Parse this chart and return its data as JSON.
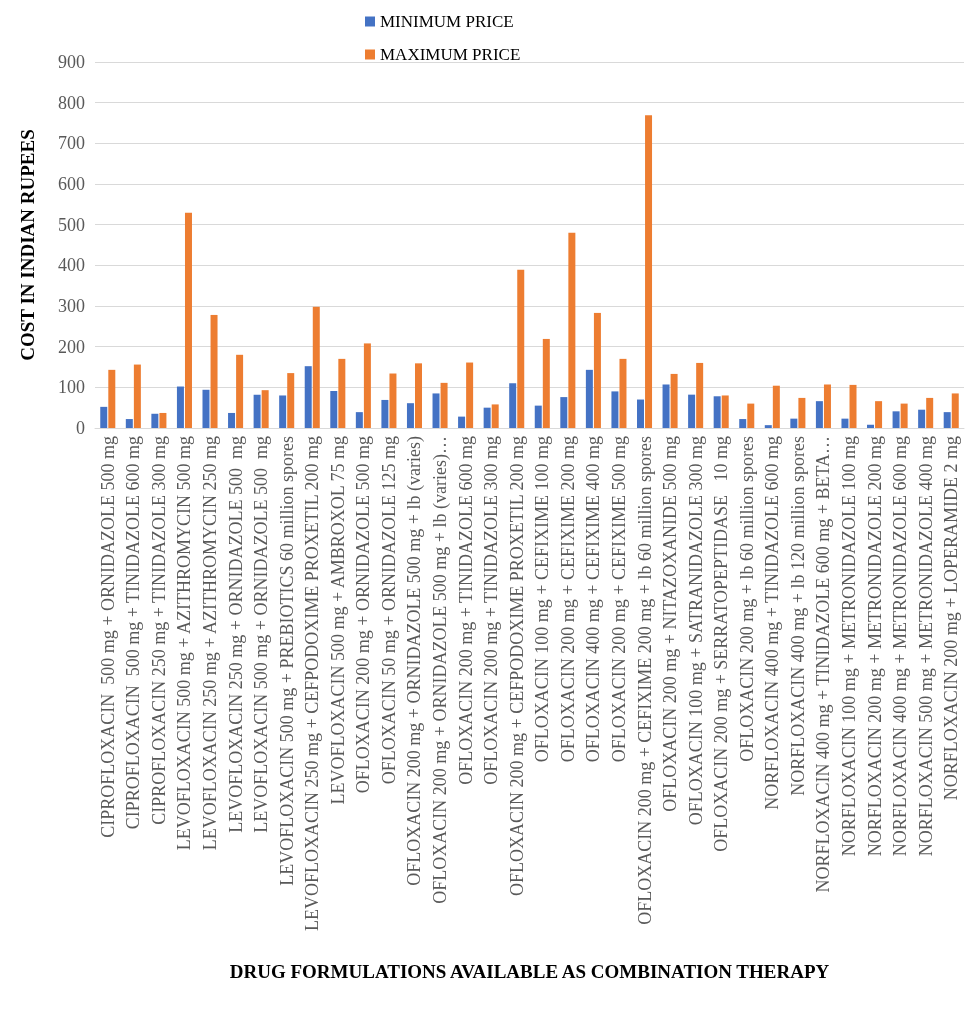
{
  "chart_data": {
    "type": "bar",
    "xlabel": "DRUG FORMULATIONS AVAILABLE AS COMBINATION THERAPY",
    "ylabel": "COST IN INDIAN RUPEES",
    "categories": [
      "CIPROFLOXACIN  500 mg + ORNIDAZOLE 500 mg",
      "CIPROFLOXACIN  500 mg + TINIDAZOLE 600 mg",
      "CIPROFLOXACIN 250 mg + TINIDAZOLE 300 mg",
      "LEVOFLOXACIN 500 mg + AZITHROMYCIN 500 mg",
      "LEVOFLOXACIN 250 mg + AZITHROMYCIN 250 mg",
      "LEVOFLOXACIN 250 mg + ORNIDAZOLE 500  mg",
      "LEVOFLOXACIN 500 mg + ORNIDAZOLE 500  mg",
      "LEVOFLOXACIN 500 mg + PREBIOTICS 60 million spores",
      "LEVOFLOXACIN 250 mg + CEFPODOXIME PROXETIL 200 mg",
      "LEVOFLOXACIN 500 mg + AMBROXOL 75 mg",
      "OFLOXACIN 200 mg + ORNIDAZOLE 500 mg",
      "OFLOXACIN 50 mg + ORNIDAZOLE 125 mg",
      "OFLOXACIN 200 mg + ORNIDAZOLE 500 mg + lb (varies)",
      "OFLOXACIN 200 mg + ORNIDAZOLE 500 mg + lb (varies)…",
      "OFLOXACIN 200 mg + TINIDAZOLE 600 mg",
      "OFLOXACIN 200 mg + TINIDAZOLE 300 mg",
      "OFLOXACIN 200 mg + CEFPODOXIME PROXETIL 200 mg",
      "OFLOXACIN 100 mg + CEFIXIME 100 mg",
      "OFLOXACIN 200 mg + CEFIXIME 200 mg",
      "OFLOXACIN 400 mg + CEFIXIME 400 mg",
      "OFLOXACIN 200 mg + CEFIXIME 500 mg",
      "OFLOXACIN 200 mg + CEFIXIME 200 mg + lb 60 million spores",
      "OFLOXACIN 200 mg + NITAZOXANIDE 500 mg",
      "OFLOXACIN 100 mg + SATRANIDAZOLE 300 mg",
      "OFLOXACIN 200 mg + SERRATOPEPTIDASE   10 mg",
      "OFLOXACIN 200 mg + lb 60 million spores",
      "NORFLOXACIN 400 mg + TINIDAZOLE 600 mg",
      "NORFLOXACIN 400 mg + lb 120 million spores",
      "NORFLOXACIN 400 mg + TINIDAZOLE 600 mg + BETA…",
      "NORFLOXACIN 100 mg + METRONIDAZOLE 100 mg",
      "NORFLOXACIN 200 mg + METRONIDAZOLE 200 mg",
      "NORFLOXACIN 400 mg + METRONIDAZOLE 600 mg",
      "NORFLOXACIN 500 mg + METRONIDAZOLE 400 mg",
      "NORFLOXACIN 200 mg + LOPERAMIDE 2 mg"
    ],
    "series": [
      {
        "name": "MINIMUM PRICE",
        "color": "#4472c4",
        "values": [
          52,
          22,
          35,
          102,
          94,
          37,
          82,
          80,
          152,
          91,
          39,
          69,
          61,
          85,
          28,
          50,
          110,
          55,
          76,
          143,
          90,
          70,
          107,
          82,
          78,
          22,
          7,
          23,
          66,
          23,
          8,
          41,
          45,
          39
        ]
      },
      {
        "name": "MAXIMUM PRICE",
        "color": "#ed7d31",
        "values": [
          143,
          156,
          37,
          529,
          278,
          180,
          93,
          135,
          298,
          170,
          208,
          134,
          159,
          111,
          161,
          58,
          389,
          219,
          480,
          283,
          170,
          769,
          133,
          160,
          80,
          60,
          104,
          74,
          107,
          106,
          66,
          60,
          74,
          85
        ]
      }
    ],
    "ylim": [
      0,
      900
    ],
    "yticks": [
      0,
      100,
      200,
      300,
      400,
      500,
      600,
      700,
      800,
      900
    ],
    "grid": "y",
    "legend": "top"
  }
}
